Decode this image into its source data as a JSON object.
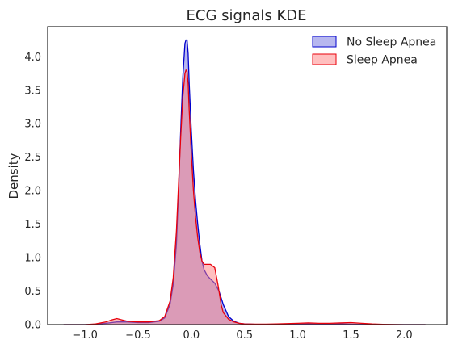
{
  "chart_data": {
    "type": "area",
    "title": "ECG signals KDE",
    "xlabel": "",
    "ylabel": "Density",
    "xlim": [
      -1.35,
      2.4
    ],
    "ylim": [
      0,
      4.45
    ],
    "xticks": [
      -1.0,
      -0.5,
      0.0,
      0.5,
      1.0,
      1.5,
      2.0
    ],
    "xtick_labels": [
      "−1.0",
      "−0.5",
      "0.0",
      "0.5",
      "1.0",
      "1.5",
      "2.0"
    ],
    "yticks": [
      0.0,
      0.5,
      1.0,
      1.5,
      2.0,
      2.5,
      3.0,
      3.5,
      4.0
    ],
    "ytick_labels": [
      "0.0",
      "0.5",
      "1.0",
      "1.5",
      "2.0",
      "2.5",
      "3.0",
      "3.5",
      "4.0"
    ],
    "grid": false,
    "legend_position": "top-right",
    "series": [
      {
        "name": "No Sleep Apnea",
        "color": "#0000cc",
        "fill": "#7070e0",
        "x": [
          -1.2,
          -1.0,
          -0.9,
          -0.8,
          -0.7,
          -0.6,
          -0.5,
          -0.4,
          -0.3,
          -0.25,
          -0.2,
          -0.17,
          -0.14,
          -0.12,
          -0.1,
          -0.08,
          -0.06,
          -0.05,
          -0.04,
          -0.03,
          -0.02,
          0.0,
          0.02,
          0.04,
          0.06,
          0.08,
          0.1,
          0.12,
          0.15,
          0.18,
          0.22,
          0.26,
          0.3,
          0.35,
          0.4,
          0.45,
          0.5,
          0.6,
          0.7,
          0.8,
          0.9,
          1.0,
          1.1,
          1.2,
          1.3,
          1.4,
          1.5,
          1.6,
          1.7,
          1.8,
          2.0,
          2.2
        ],
        "y": [
          0.0,
          0.0,
          0.005,
          0.02,
          0.04,
          0.04,
          0.03,
          0.03,
          0.05,
          0.1,
          0.3,
          0.6,
          1.2,
          2.0,
          2.9,
          3.7,
          4.2,
          4.25,
          4.25,
          4.05,
          3.6,
          2.9,
          2.3,
          1.85,
          1.5,
          1.2,
          0.95,
          0.82,
          0.73,
          0.68,
          0.62,
          0.5,
          0.3,
          0.12,
          0.05,
          0.02,
          0.01,
          0.005,
          0.005,
          0.005,
          0.005,
          0.008,
          0.01,
          0.008,
          0.008,
          0.01,
          0.008,
          0.005,
          0.003,
          0.0,
          0.0,
          0.0
        ]
      },
      {
        "name": "Sleep Apnea",
        "color": "#e8000b",
        "fill": "#ff8080",
        "x": [
          -1.2,
          -1.0,
          -0.9,
          -0.8,
          -0.75,
          -0.7,
          -0.65,
          -0.6,
          -0.5,
          -0.4,
          -0.3,
          -0.25,
          -0.2,
          -0.17,
          -0.14,
          -0.12,
          -0.1,
          -0.08,
          -0.06,
          -0.05,
          -0.04,
          -0.03,
          -0.02,
          0.0,
          0.02,
          0.04,
          0.06,
          0.08,
          0.1,
          0.12,
          0.15,
          0.18,
          0.22,
          0.25,
          0.28,
          0.3,
          0.35,
          0.4,
          0.45,
          0.5,
          0.6,
          0.7,
          0.8,
          0.9,
          1.0,
          1.1,
          1.2,
          1.3,
          1.4,
          1.5,
          1.6,
          1.7,
          1.8,
          2.0,
          2.2
        ],
        "y": [
          0.0,
          0.0,
          0.01,
          0.04,
          0.07,
          0.09,
          0.07,
          0.05,
          0.04,
          0.04,
          0.06,
          0.12,
          0.35,
          0.7,
          1.4,
          2.1,
          2.8,
          3.4,
          3.75,
          3.8,
          3.78,
          3.6,
          3.2,
          2.55,
          2.0,
          1.6,
          1.3,
          1.08,
          0.95,
          0.9,
          0.9,
          0.9,
          0.85,
          0.6,
          0.3,
          0.18,
          0.08,
          0.04,
          0.02,
          0.01,
          0.008,
          0.008,
          0.01,
          0.015,
          0.02,
          0.025,
          0.02,
          0.02,
          0.025,
          0.03,
          0.02,
          0.01,
          0.005,
          0.0,
          0.0
        ]
      }
    ]
  }
}
